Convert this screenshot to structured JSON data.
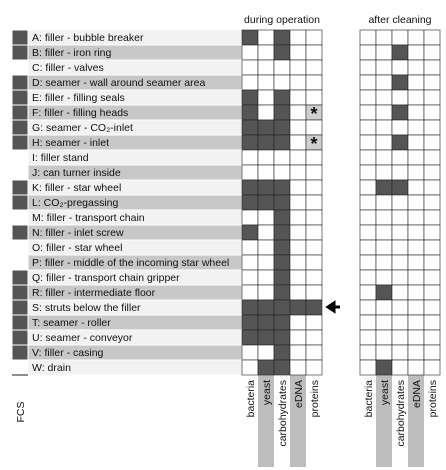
{
  "headers": {
    "during": "during operation",
    "after": "after cleaning",
    "fcs": "FCS",
    "columns": [
      "bacteria",
      "yeast",
      "carbohydrates",
      "eDNA",
      "proteins"
    ]
  },
  "rows": [
    {
      "label": "A: filler - bubble breaker",
      "fcs": 1,
      "during": [
        1,
        0,
        1,
        0,
        0
      ],
      "after": [
        0,
        0,
        0,
        0,
        0
      ]
    },
    {
      "label": "B: filler - iron ring",
      "fcs": 1,
      "during": [
        0,
        0,
        1,
        0,
        0
      ],
      "after": [
        0,
        0,
        1,
        0,
        0
      ]
    },
    {
      "label": "C: filler - valves",
      "fcs": 0,
      "during": [
        0,
        0,
        0,
        0,
        0
      ],
      "after": [
        0,
        0,
        0,
        0,
        0
      ]
    },
    {
      "label": "D: seamer - wall around seamer area",
      "fcs": 1,
      "during": [
        0,
        0,
        0,
        0,
        0
      ],
      "after": [
        0,
        0,
        1,
        0,
        0
      ]
    },
    {
      "label": "E: filler - filling seals",
      "fcs": 1,
      "during": [
        1,
        0,
        1,
        0,
        0
      ],
      "after": [
        0,
        0,
        0,
        0,
        0
      ]
    },
    {
      "label": "F: filler - filling heads",
      "fcs": 1,
      "during": [
        1,
        0,
        1,
        0,
        0
      ],
      "after": [
        0,
        0,
        1,
        0,
        0
      ],
      "star": "*"
    },
    {
      "label": "G: seamer - CO₂-inlet",
      "fcs": 1,
      "during": [
        1,
        1,
        1,
        0,
        0
      ],
      "after": [
        0,
        0,
        0,
        0,
        0
      ]
    },
    {
      "label": "H: seamer - inlet",
      "fcs": 1,
      "during": [
        1,
        1,
        1,
        0,
        0
      ],
      "after": [
        0,
        0,
        1,
        0,
        0
      ],
      "star": "*"
    },
    {
      "label": "I: filler stand",
      "fcs": 0,
      "during": [
        0,
        0,
        0,
        0,
        0
      ],
      "after": [
        0,
        0,
        0,
        0,
        0
      ]
    },
    {
      "label": "J: can turner inside",
      "fcs": 0,
      "during": [
        0,
        0,
        0,
        0,
        0
      ],
      "after": [
        0,
        0,
        0,
        0,
        0
      ]
    },
    {
      "label": "K: filler - star wheel",
      "fcs": 1,
      "during": [
        1,
        1,
        1,
        0,
        0
      ],
      "after": [
        0,
        1,
        1,
        0,
        0
      ]
    },
    {
      "label": "L: CO₂-pregassing",
      "fcs": 1,
      "during": [
        1,
        1,
        1,
        0,
        0
      ],
      "after": [
        0,
        0,
        0,
        0,
        0
      ]
    },
    {
      "label": "M: filler - transport chain",
      "fcs": 0,
      "during": [
        0,
        0,
        1,
        0,
        0
      ],
      "after": [
        0,
        0,
        0,
        0,
        0
      ]
    },
    {
      "label": "N: filler - inlet screw",
      "fcs": 1,
      "during": [
        1,
        0,
        1,
        0,
        0
      ],
      "after": [
        0,
        0,
        0,
        0,
        0
      ]
    },
    {
      "label": "O: filler - star wheel",
      "fcs": 0,
      "during": [
        0,
        0,
        1,
        0,
        0
      ],
      "after": [
        0,
        0,
        0,
        0,
        0
      ]
    },
    {
      "label": "P: filler - middle of the incoming star wheel",
      "fcs": 0,
      "during": [
        0,
        0,
        1,
        0,
        0
      ],
      "after": [
        0,
        0,
        0,
        0,
        0
      ]
    },
    {
      "label": "Q: filler - transport chain gripper",
      "fcs": 1,
      "during": [
        0,
        0,
        1,
        0,
        0
      ],
      "after": [
        0,
        0,
        0,
        0,
        0
      ]
    },
    {
      "label": "R: filler - intermediate floor",
      "fcs": 1,
      "during": [
        0,
        0,
        1,
        0,
        0
      ],
      "after": [
        0,
        1,
        0,
        0,
        0
      ]
    },
    {
      "label": "S: struts below the filler",
      "fcs": 1,
      "during": [
        1,
        1,
        1,
        1,
        1
      ],
      "after": [
        0,
        0,
        0,
        0,
        0
      ]
    },
    {
      "label": "T: seamer - roller",
      "fcs": 1,
      "during": [
        1,
        1,
        1,
        0,
        0
      ],
      "after": [
        0,
        0,
        0,
        0,
        0
      ]
    },
    {
      "label": "U: seamer - conveyor",
      "fcs": 1,
      "during": [
        1,
        1,
        1,
        0,
        0
      ],
      "after": [
        0,
        0,
        0,
        0,
        0
      ]
    },
    {
      "label": "V: filler - casing",
      "fcs": 1,
      "during": [
        0,
        0,
        1,
        0,
        0
      ],
      "after": [
        0,
        0,
        0,
        0,
        0
      ]
    },
    {
      "label": "W: drain",
      "fcs": 0,
      "during": [
        0,
        1,
        1,
        0,
        0
      ],
      "after": [
        0,
        1,
        0,
        0,
        0
      ]
    }
  ]
}
